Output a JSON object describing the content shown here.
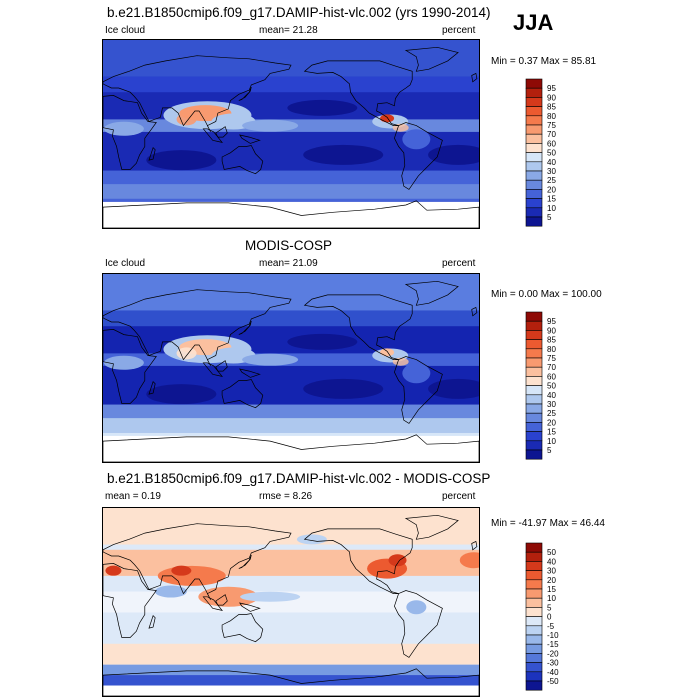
{
  "season": "JJA",
  "units": "percent",
  "panels": [
    {
      "title": "b.e21.B1850cmip6.f09_g17.DAMIP-hist-vlc.002 (yrs 1990-2014)",
      "left_label": "Ice cloud",
      "center_label": "mean=  21.28",
      "right_label": "percent",
      "minmax": "Min =  0.37 Max =  85.81",
      "colorbar_labels": [
        "95",
        "90",
        "85",
        "80",
        "75",
        "70",
        "60",
        "50",
        "40",
        "30",
        "25",
        "20",
        "15",
        "10",
        "5"
      ],
      "colorbar_colors": [
        "#8e0a05",
        "#b3200d",
        "#d5391b",
        "#ec5a30",
        "#f57a4c",
        "#f89a70",
        "#fbc09f",
        "#fde2cf",
        "#d6e6f8",
        "#aec8ee",
        "#8aa9e6",
        "#6888de",
        "#4563d8",
        "#2a42cf",
        "#1a2ab4",
        "#0d1591"
      ],
      "map_style": "model"
    },
    {
      "title": "MODIS-COSP",
      "left_label": "Ice cloud",
      "center_label": "mean=  21.09",
      "right_label": "percent",
      "minmax": "Min =  0.00 Max = 100.00",
      "colorbar_labels": [
        "95",
        "90",
        "85",
        "80",
        "75",
        "70",
        "60",
        "50",
        "40",
        "30",
        "25",
        "20",
        "15",
        "10",
        "5"
      ],
      "colorbar_colors": [
        "#8e0a05",
        "#b3200d",
        "#d5391b",
        "#ec5a30",
        "#f57a4c",
        "#f89a70",
        "#fbc09f",
        "#fde2cf",
        "#d6e6f8",
        "#aec8ee",
        "#8aa9e6",
        "#6888de",
        "#4563d8",
        "#2a42cf",
        "#1a2ab4",
        "#0d1591"
      ],
      "map_style": "obs"
    },
    {
      "title": "b.e21.B1850cmip6.f09_g17.DAMIP-hist-vlc.002 - MODIS-COSP",
      "left_label": "mean =   0.19",
      "center_label": "rmse =   8.26",
      "right_label": "percent",
      "minmax": "Min = -41.97 Max =  46.44",
      "colorbar_labels": [
        "50",
        "40",
        "30",
        "20",
        "15",
        "10",
        "5",
        "0",
        "-5",
        "-10",
        "-15",
        "-20",
        "-30",
        "-40",
        "-50"
      ],
      "colorbar_colors": [
        "#8e0a05",
        "#b3200d",
        "#d5391b",
        "#ec5a30",
        "#f57a4c",
        "#f89a70",
        "#fbc09f",
        "#fde2cf",
        "#dde9f8",
        "#bcd3f2",
        "#99b8ea",
        "#779be2",
        "#5578da",
        "#3553cf",
        "#1c33bd",
        "#0d1591"
      ],
      "map_style": "diff"
    }
  ]
}
